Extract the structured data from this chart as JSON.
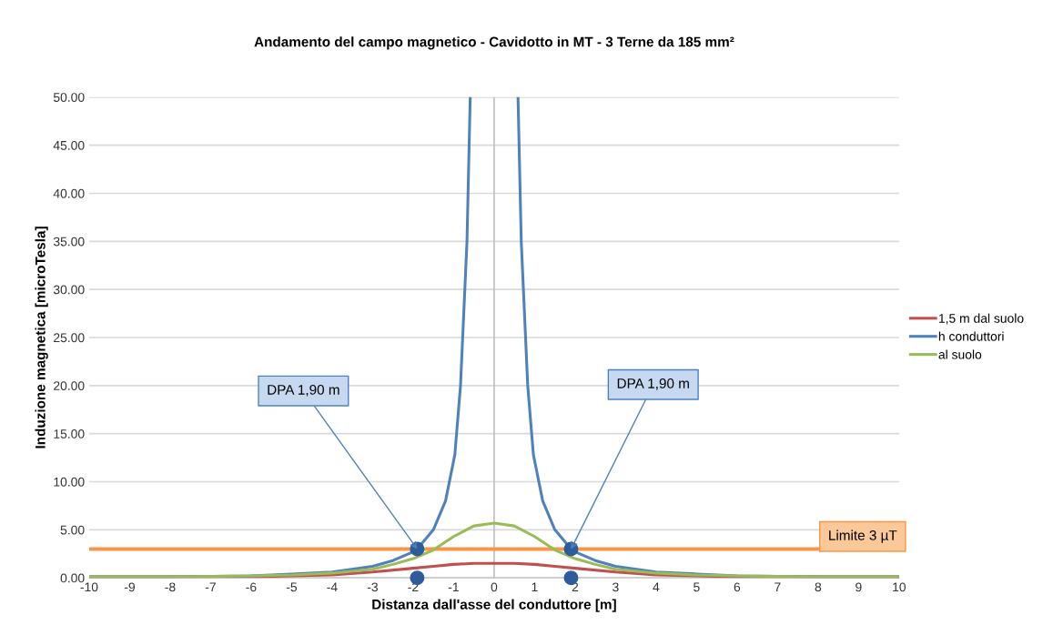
{
  "chart_data": {
    "type": "line",
    "title": "Andamento del campo magnetico - Cavidotto in MT - 3 Terne da 185 mm²",
    "xlabel": "Distanza dall'asse del conduttore [m]",
    "ylabel": "Induzione magnetica [microTesla]",
    "xlim": [
      -10,
      10
    ],
    "xticks": [
      -10,
      -9,
      -8,
      -7,
      -6,
      -5,
      -4,
      -3,
      -2,
      -1,
      0,
      1,
      2,
      3,
      4,
      5,
      6,
      7,
      8,
      9,
      10
    ],
    "ylim": [
      0,
      50
    ],
    "yticks": [
      {
        "value": 0,
        "label": "0.00"
      },
      {
        "value": 5,
        "label": "5.00"
      },
      {
        "value": 10,
        "label": "10.00"
      },
      {
        "value": 15,
        "label": "15.00"
      },
      {
        "value": 20,
        "label": "20.00"
      },
      {
        "value": 25,
        "label": "25.00"
      },
      {
        "value": 30,
        "label": "30.00"
      },
      {
        "value": 35,
        "label": "35.00"
      },
      {
        "value": 40,
        "label": "40.00"
      },
      {
        "value": 45,
        "label": "45.00"
      },
      {
        "value": 50,
        "label": "50.00"
      }
    ],
    "grid": "y",
    "legend": "right",
    "marker": "none",
    "line_style": "solid",
    "series": [
      {
        "name": "1,5 m dal suolo",
        "color": "#c0504d",
        "x": [
          -10,
          -8,
          -6,
          -5,
          -4,
          -3,
          -2,
          -1.5,
          -1,
          -0.5,
          0,
          0.5,
          1,
          1.5,
          2,
          3,
          4,
          5,
          6,
          8,
          10
        ],
        "values": [
          0.1,
          0.1,
          0.1,
          0.2,
          0.3,
          0.6,
          1.0,
          1.2,
          1.4,
          1.5,
          1.5,
          1.5,
          1.4,
          1.2,
          1.0,
          0.6,
          0.3,
          0.2,
          0.1,
          0.1,
          0.1
        ]
      },
      {
        "name": "h conduttori",
        "color": "#4f81bd",
        "x": [
          -10,
          -8,
          -6,
          -5,
          -4,
          -3,
          -2.5,
          -2,
          -1.9,
          -1.5,
          -1.2,
          -0.97,
          -0.83,
          -0.67,
          -0.59,
          0,
          0.59,
          0.67,
          0.83,
          0.97,
          1.2,
          1.5,
          1.9,
          2,
          2.5,
          3,
          4,
          5,
          6,
          8,
          10
        ],
        "values": [
          0.1,
          0.1,
          0.2,
          0.4,
          0.6,
          1.2,
          1.8,
          2.7,
          3.0,
          5,
          8,
          12.8,
          20,
          35,
          50,
          null,
          50,
          35,
          20,
          12.8,
          8,
          5,
          3.0,
          2.7,
          1.8,
          1.2,
          0.6,
          0.4,
          0.2,
          0.1,
          0.1
        ]
      },
      {
        "name": "al suolo",
        "color": "#9bbb59",
        "x": [
          -10,
          -8,
          -6,
          -5,
          -4,
          -3,
          -2.5,
          -2,
          -1.5,
          -1,
          -0.5,
          0,
          0.5,
          1,
          1.5,
          2,
          2.5,
          3,
          4,
          5,
          6,
          8,
          10
        ],
        "values": [
          0.1,
          0.1,
          0.2,
          0.3,
          0.5,
          0.9,
          1.4,
          2.0,
          2.9,
          4.3,
          5.4,
          5.7,
          5.4,
          4.3,
          2.9,
          2.0,
          1.4,
          0.9,
          0.5,
          0.3,
          0.2,
          0.1,
          0.1
        ]
      },
      {
        "type": "scatter",
        "marker": "circle",
        "color": "#2e5c9a",
        "x": [
          -1.9,
          1.9,
          -1.9,
          1.9
        ],
        "values": [
          3,
          3,
          0,
          0
        ]
      }
    ],
    "ref_lines": [
      {
        "axis": "y",
        "value": 3,
        "label": "Limite 3 µT",
        "color": "#f79646"
      },
      {
        "axis": "x",
        "value": 0,
        "color": "#bfbfbf"
      }
    ],
    "annotations": [
      {
        "text": "DPA 1,90 m",
        "x": -1.9,
        "y": 3
      },
      {
        "text": "DPA 1,90 m",
        "x": 1.9,
        "y": 3
      }
    ]
  }
}
